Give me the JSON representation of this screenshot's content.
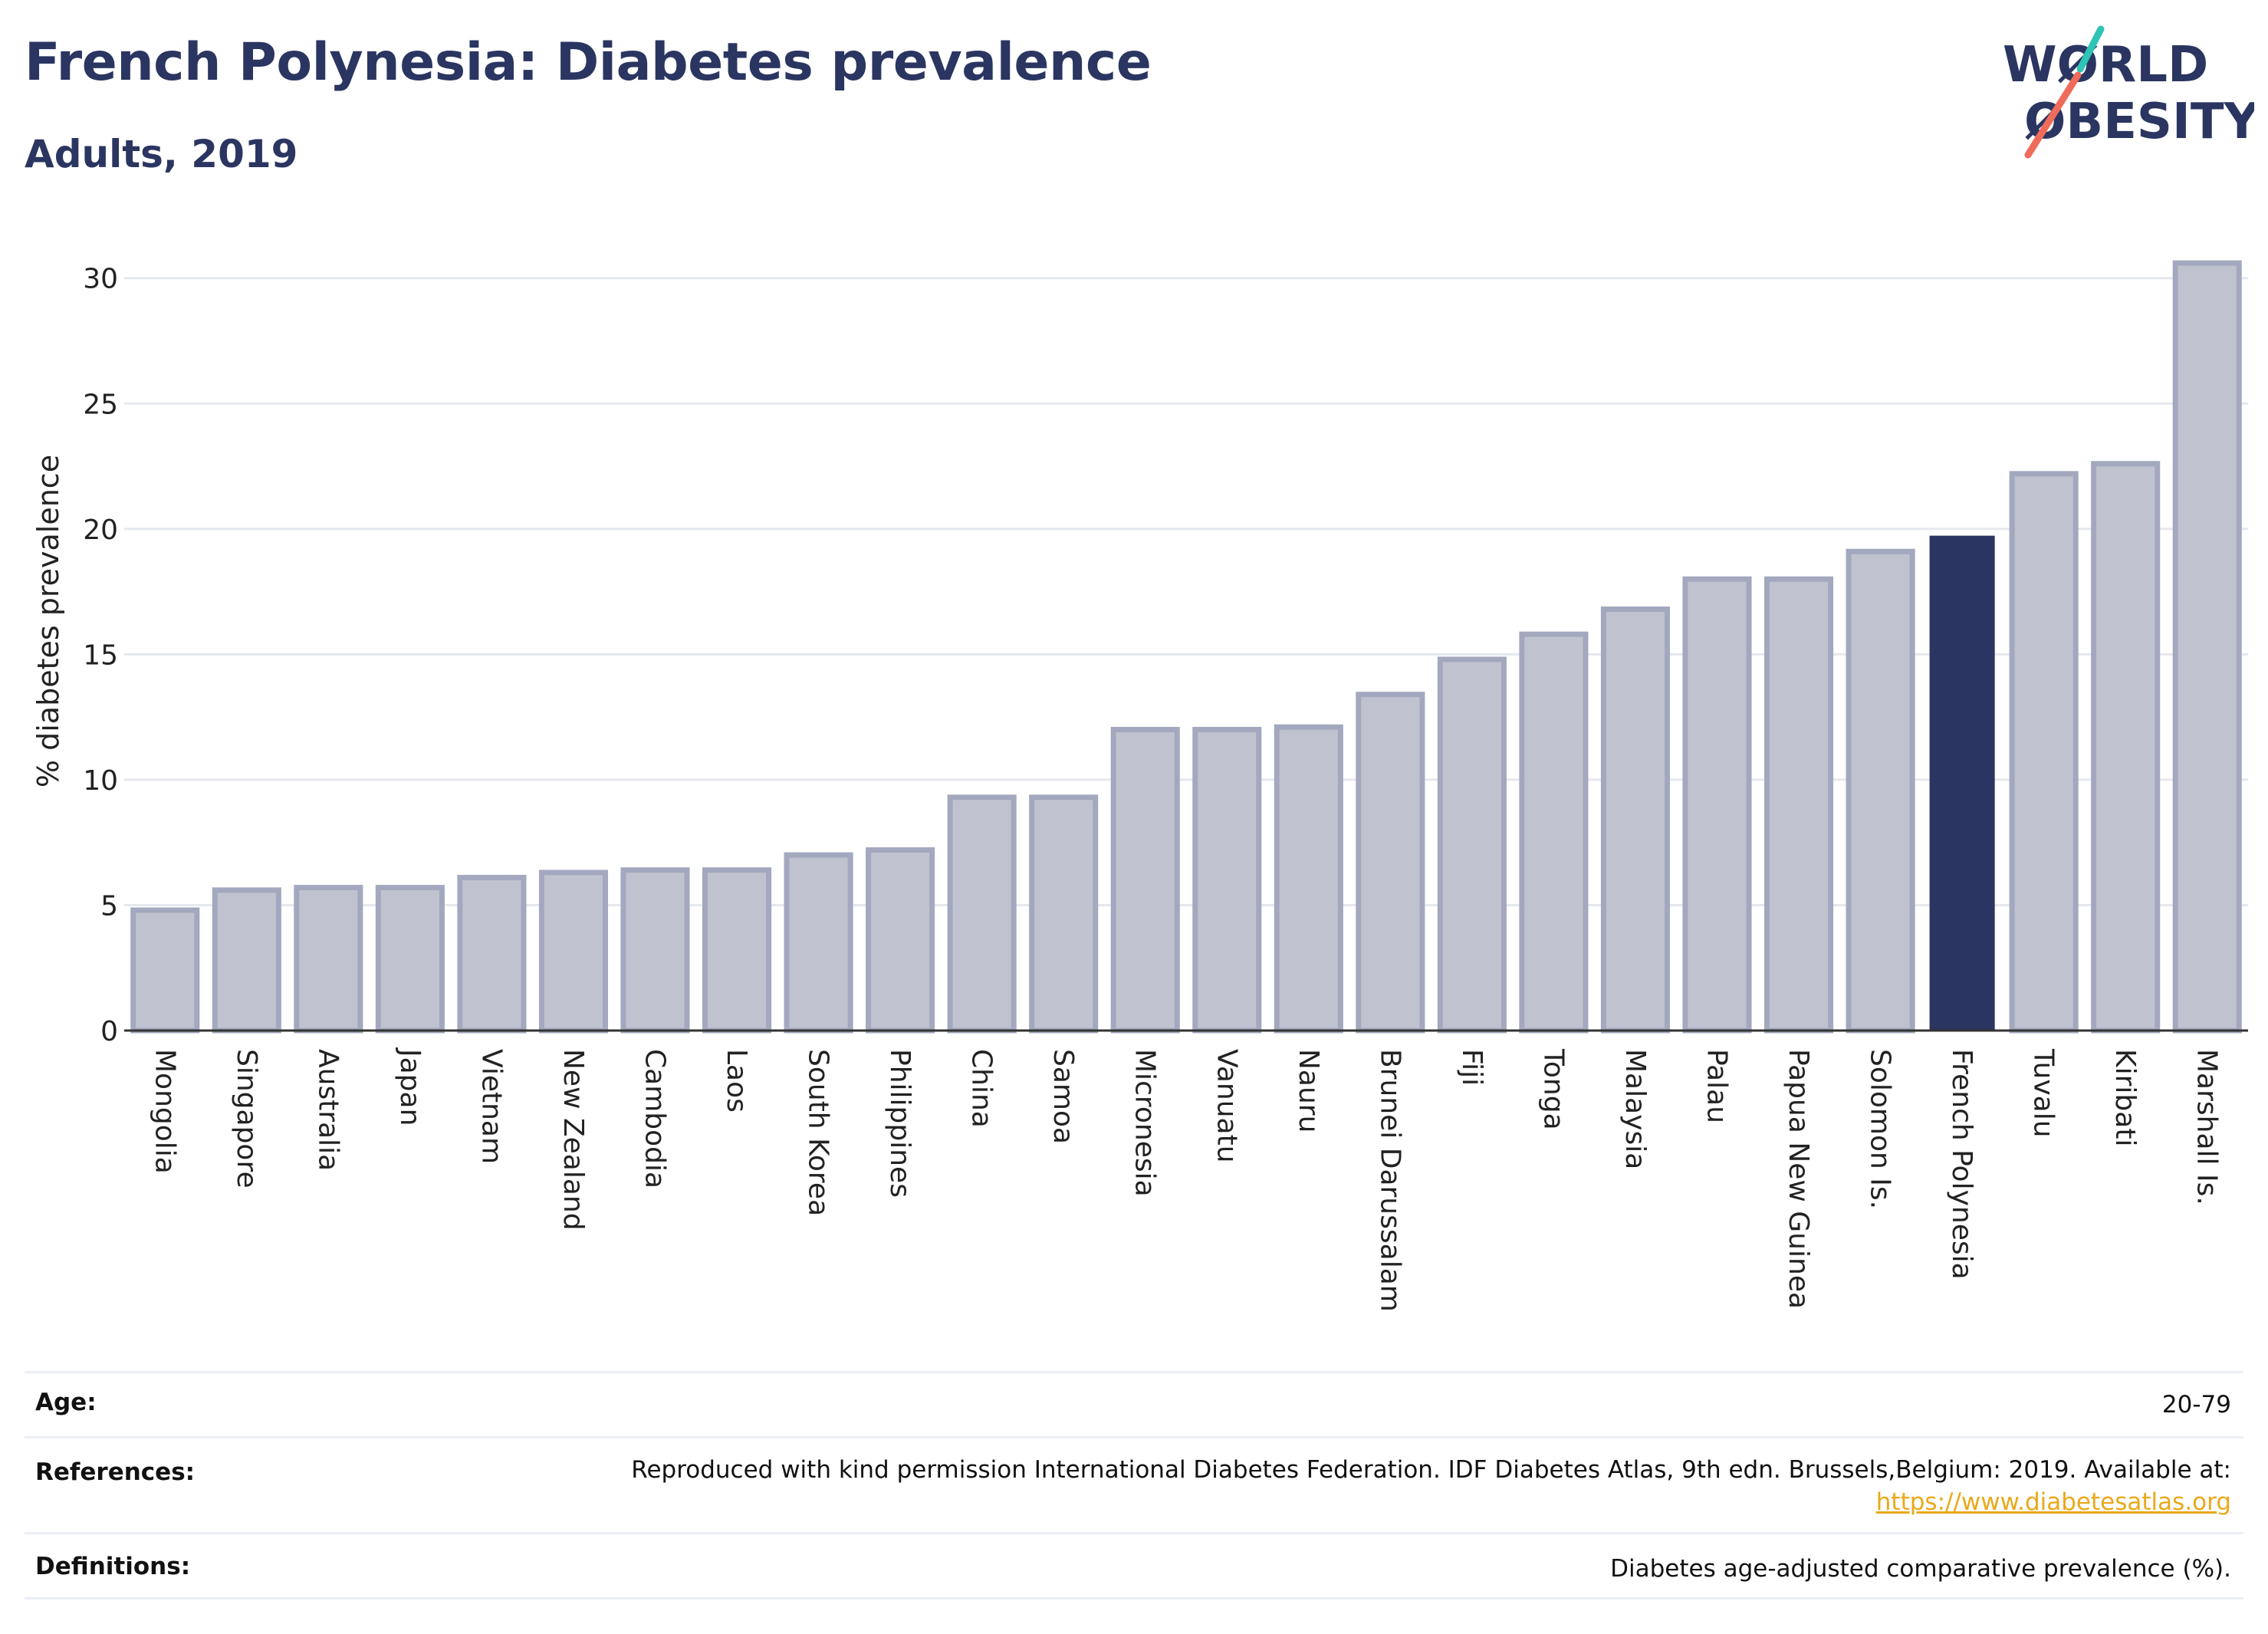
{
  "header": {
    "title": "French Polynesia: Diabetes prevalence",
    "subtitle": "Adults, 2019"
  },
  "logo": {
    "line1": "WØRLD",
    "line2": "ØBESITY",
    "colors": {
      "text": "#2b3561",
      "slash_top": "#2ec4b6",
      "slash_bottom": "#ef6b5a"
    }
  },
  "chart_data": {
    "type": "bar",
    "title": "French Polynesia: Diabetes prevalence",
    "subtitle": "Adults, 2019",
    "xlabel": "",
    "ylabel": "% diabetes prevalence",
    "ylim": [
      0,
      31
    ],
    "yticks": [
      0,
      5,
      10,
      15,
      20,
      25,
      30
    ],
    "grid": true,
    "categories": [
      "Mongolia",
      "Singapore",
      "Australia",
      "Japan",
      "Vietnam",
      "New Zealand",
      "Cambodia",
      "Laos",
      "South Korea",
      "Philippines",
      "China",
      "Samoa",
      "Micronesia",
      "Vanuatu",
      "Nauru",
      "Brunei Darussalam",
      "Fiji",
      "Tonga",
      "Malaysia",
      "Palau",
      "Papua New Guinea",
      "Solomon Is.",
      "French Polynesia",
      "Tuvalu",
      "Kiribati",
      "Marshall Is."
    ],
    "values": [
      4.8,
      5.6,
      5.7,
      5.7,
      6.1,
      6.3,
      6.4,
      6.4,
      7.0,
      7.2,
      9.3,
      9.3,
      12.0,
      12.0,
      12.1,
      13.4,
      14.8,
      15.8,
      16.8,
      18.0,
      18.0,
      19.1,
      19.7,
      22.2,
      22.6,
      30.6
    ],
    "highlight": "French Polynesia",
    "colors": {
      "bar": "#c0c3cf",
      "bar_border": "#a3a8be",
      "highlight": "#2b3561",
      "grid": "#e6e8ef",
      "axis": "#333333"
    }
  },
  "table": {
    "age_label": "Age:",
    "age_value": "20-79",
    "references_label": "References:",
    "references_text": "Reproduced with kind permission International Diabetes Federation. IDF Diabetes Atlas, 9th edn. Brussels,Belgium: 2019. Available at:",
    "references_link": "https://www.diabetesatlas.org",
    "definitions_label": "Definitions:",
    "definitions_value": "Diabetes age-adjusted comparative prevalence (%)."
  }
}
